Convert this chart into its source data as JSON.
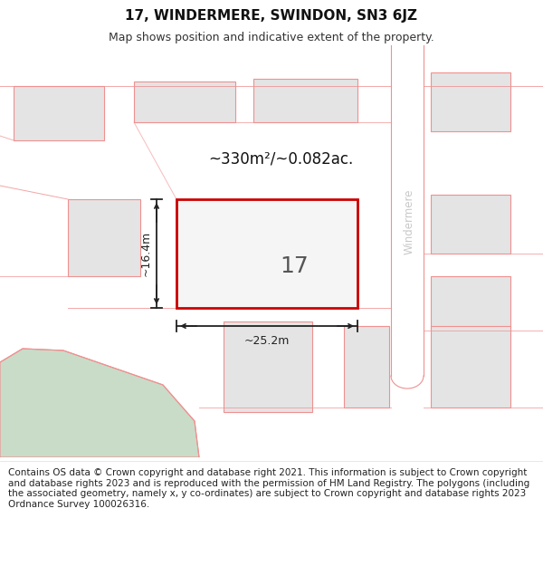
{
  "title": "17, WINDERMERE, SWINDON, SN3 6JZ",
  "subtitle": "Map shows position and indicative extent of the property.",
  "footer": "Contains OS data © Crown copyright and database right 2021. This information is subject to Crown copyright and database rights 2023 and is reproduced with the permission of HM Land Registry. The polygons (including the associated geometry, namely x, y co-ordinates) are subject to Crown copyright and database rights 2023 Ordnance Survey 100026316.",
  "map_bg": "#efefef",
  "block_color": "#e4e4e4",
  "pink_line": "#f09090",
  "red_box": "#cc0000",
  "green_color": "#c8dcc8",
  "road_color": "#ffffff",
  "street_color": "#c8c8c8",
  "street_name": "Windermere",
  "property_number": "17",
  "area_label": "~330m²/~0.082ac.",
  "width_label": "~25.2m",
  "height_label": "~16.4m",
  "title_fontsize": 11,
  "subtitle_fontsize": 9,
  "footer_fontsize": 7.5,
  "anno_color": "#222222"
}
